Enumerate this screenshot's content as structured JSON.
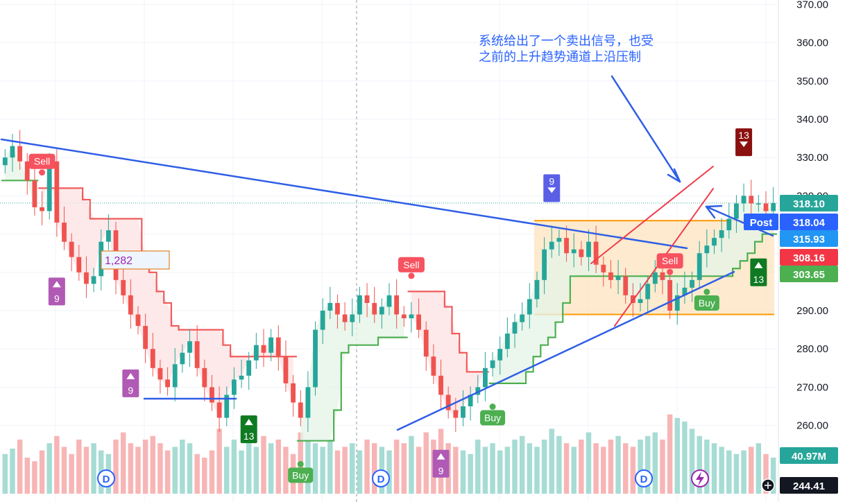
{
  "chart_data": {
    "type": "candlestick",
    "price_axis": {
      "ticks": [
        "370.00",
        "360.00",
        "350.00",
        "340.00",
        "330.00",
        "320.00",
        "310.00",
        "300.00",
        "290.00",
        "280.00",
        "270.00",
        "260.00"
      ],
      "min": 250,
      "max": 375
    },
    "price_badges": [
      {
        "text": "318.10",
        "value": 318.1,
        "color": "#26a69a"
      },
      {
        "text": "318.04",
        "value": 318.04,
        "color": "#2962ff",
        "tag": "Post"
      },
      {
        "text": "315.93",
        "value": 315.93,
        "color": "#2196f3"
      },
      {
        "text": "308.16",
        "value": 308.16,
        "color": "#f23645"
      },
      {
        "text": "303.65",
        "value": 303.65,
        "color": "#4caf50"
      }
    ],
    "volume_badge": "40.97M",
    "crosshair_badge": "244.41",
    "annotation_box_text": "1,282",
    "note_lines": [
      "系统给出了一个卖出信号，也受",
      "之前的上升趋势通道上沿压制"
    ],
    "signals": [
      {
        "text": "Sell",
        "type": "sell",
        "bar": 5
      },
      {
        "text": "9",
        "type": "up",
        "bar": 7
      },
      {
        "text": "9",
        "type": "up",
        "bar": 17
      },
      {
        "text": "13",
        "type": "up",
        "bar": 33
      },
      {
        "text": "Buy",
        "type": "buy",
        "bar": 40
      },
      {
        "text": "Sell",
        "type": "sell",
        "bar": 55
      },
      {
        "text": "9",
        "type": "up",
        "bar": 59
      },
      {
        "text": "Buy",
        "type": "buy",
        "bar": 66
      },
      {
        "text": "9",
        "type": "down",
        "bar": 74
      },
      {
        "text": "Sell",
        "type": "sell",
        "bar": 90
      },
      {
        "text": "Buy",
        "type": "buy",
        "bar": 95
      },
      {
        "text": "13",
        "type": "down",
        "bar": 100
      },
      {
        "text": "13",
        "type": "up",
        "bar": 102
      }
    ],
    "event_markers": [
      "D",
      "D",
      "D"
    ],
    "rect_zone": {
      "top": 313.5,
      "bottom": 289.0
    },
    "series": [
      {
        "name": "price",
        "values": [
          330,
          333,
          329,
          324,
          317,
          316,
          329,
          313,
          308,
          304,
          300,
          297,
          299,
          308,
          311,
          298,
          294,
          289,
          286,
          280,
          275,
          272,
          270,
          276,
          279,
          282,
          275,
          270,
          266,
          262,
          268,
          272,
          273,
          277,
          281,
          279,
          283,
          278,
          271,
          266,
          262,
          270,
          285,
          290,
          292,
          289,
          287,
          289,
          294,
          292,
          289,
          291,
          294,
          289,
          288,
          289,
          285,
          278,
          273,
          268,
          264,
          262,
          265,
          268,
          270,
          275,
          277,
          280,
          284,
          287,
          289,
          293,
          298,
          306,
          308,
          309,
          305,
          306,
          304,
          308,
          302,
          300,
          298,
          299,
          294,
          292,
          293,
          297,
          300,
          298,
          290,
          294,
          296,
          298,
          305,
          307,
          309,
          311,
          314,
          318,
          320,
          318,
          318,
          316,
          318.1
        ]
      }
    ],
    "volume": [
      22,
      25,
      30,
      20,
      18,
      24,
      28,
      32,
      26,
      22,
      30,
      26,
      28,
      24,
      22,
      30,
      34,
      28,
      26,
      30,
      32,
      28,
      24,
      26,
      30,
      28,
      22,
      20,
      24,
      36,
      26,
      30,
      24,
      28,
      26,
      32,
      28,
      30,
      26,
      22,
      34,
      30,
      28,
      26,
      30,
      24,
      26,
      28,
      24,
      30,
      28,
      26,
      24,
      30,
      28,
      32,
      26,
      34,
      30,
      36,
      28,
      26,
      24,
      22,
      30,
      26,
      28,
      24,
      26,
      30,
      32,
      28,
      26,
      30,
      36,
      32,
      28,
      26,
      30,
      34,
      28,
      26,
      30,
      32,
      28,
      26,
      30,
      32,
      34,
      30,
      44,
      42,
      40,
      36,
      32,
      30,
      28,
      26,
      24,
      22,
      24,
      26,
      28,
      22,
      20
    ]
  }
}
